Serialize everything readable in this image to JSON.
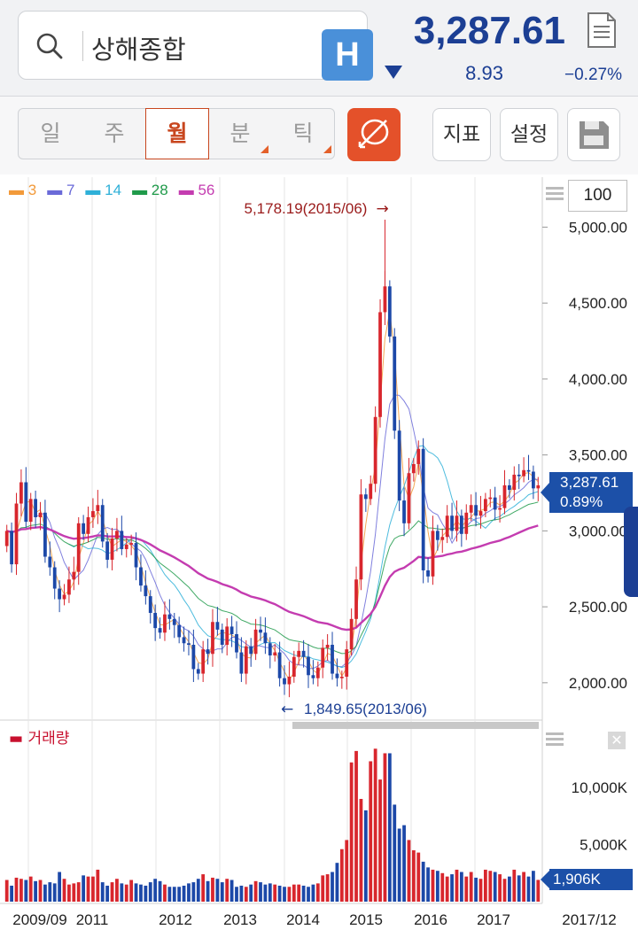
{
  "search": {
    "query": "상해종합",
    "badge": "H"
  },
  "quote": {
    "price": "3,287.61",
    "change": "8.93",
    "change_pct": "−0.27%",
    "direction": "down"
  },
  "periods": [
    {
      "label": "일",
      "active": false,
      "has_menu": false
    },
    {
      "label": "주",
      "active": false,
      "has_menu": false
    },
    {
      "label": "월",
      "active": true,
      "has_menu": false
    },
    {
      "label": "분",
      "active": false,
      "has_menu": true
    },
    {
      "label": "틱",
      "active": false,
      "has_menu": true
    }
  ],
  "toolbar": {
    "indicator_label": "지표",
    "settings_label": "설정"
  },
  "chart": {
    "visible_count": "100",
    "legend": [
      {
        "label": "3",
        "color": "#f29a3a"
      },
      {
        "label": "7",
        "color": "#6a6ad8"
      },
      {
        "label": "14",
        "color": "#2fb0d8"
      },
      {
        "label": "28",
        "color": "#1f9a4a"
      },
      {
        "label": "56",
        "color": "#c43cb0"
      }
    ],
    "high_annotation": "5,178.19(2015/06)",
    "low_annotation": "1,849.65(2013/06)",
    "price_tag_value": "3,287.61",
    "price_tag_pct": "0.89%",
    "volume_label": "거래량",
    "volume_tag": "1,906K",
    "colors": {
      "up": "#d8262d",
      "down": "#1c48a8",
      "accent": "#1c3f94"
    }
  },
  "chart_data": {
    "type": "candlestick",
    "interval": "monthly",
    "y_ticks": [
      "5,000.00",
      "4,500.00",
      "4,000.00",
      "3,500.00",
      "3,000.00",
      "2,500.00",
      "2,000.00"
    ],
    "ylim": [
      1760,
      5300
    ],
    "volume_ticks": [
      "10,000K",
      "5,000K"
    ],
    "x_ticks": [
      "2009/09",
      "2011",
      "2012",
      "2013",
      "2014",
      "2015",
      "2016",
      "2017",
      "2017/12"
    ],
    "close": [
      3000,
      2780,
      3180,
      3320,
      3060,
      3210,
      3090,
      3120,
      2830,
      2760,
      2620,
      2550,
      2580,
      2680,
      2730,
      3050,
      2980,
      3090,
      3130,
      3170,
      2930,
      2810,
      2950,
      3000,
      2880,
      2910,
      2920,
      2760,
      2640,
      2570,
      2460,
      2360,
      2330,
      2450,
      2420,
      2380,
      2300,
      2260,
      2250,
      2090,
      2060,
      2220,
      2190,
      2400,
      2350,
      2250,
      2370,
      2320,
      2200,
      2060,
      2240,
      2190,
      2350,
      2330,
      2260,
      2180,
      2200,
      2030,
      1990,
      2040,
      2170,
      2210,
      2170,
      2050,
      2030,
      2100,
      2230,
      2250,
      2060,
      2030,
      2040,
      2220,
      2420,
      2680,
      3240,
      3210,
      3310,
      3750,
      4440,
      4610,
      4280,
      3660,
      3200,
      3050,
      3380,
      3440,
      3540,
      2740,
      2700,
      3000,
      2940,
      2960,
      3100,
      3000,
      3100,
      2980,
      3120,
      3170,
      3100,
      3130,
      3210,
      3220,
      3140,
      3150,
      3300,
      3270,
      3370,
      3360,
      3400,
      3390,
      3280,
      3300
    ],
    "volume": [
      1900,
      1400,
      2100,
      2000,
      1900,
      2200,
      1800,
      1900,
      1500,
      1700,
      1600,
      2600,
      2000,
      1500,
      1600,
      1700,
      2300,
      2200,
      2200,
      2800,
      1700,
      1400,
      1700,
      2000,
      1600,
      1500,
      1900,
      1600,
      1500,
      1400,
      1700,
      2000,
      1800,
      1500,
      1300,
      1300,
      1300,
      1400,
      1600,
      1700,
      2000,
      2400,
      1800,
      2100,
      2000,
      1700,
      2000,
      1900,
      1300,
      1400,
      1300,
      1500,
      1800,
      1700,
      1500,
      1600,
      1500,
      1400,
      1300,
      1300,
      1500,
      1500,
      1400,
      1300,
      1500,
      1600,
      2300,
      2400,
      2600,
      3400,
      4600,
      5400,
      12200,
      13200,
      9000,
      8000,
      12300,
      13400,
      10700,
      13000,
      13000,
      8500,
      6400,
      6700,
      5400,
      4500,
      4300,
      3500,
      3000,
      2800,
      2700,
      2500,
      2200,
      2400,
      2800,
      2600,
      2200,
      2600,
      2100,
      2000,
      2800,
      2700,
      2600,
      2400,
      2000,
      2200,
      2800,
      2300,
      2600,
      2200,
      2700,
      1906
    ]
  }
}
